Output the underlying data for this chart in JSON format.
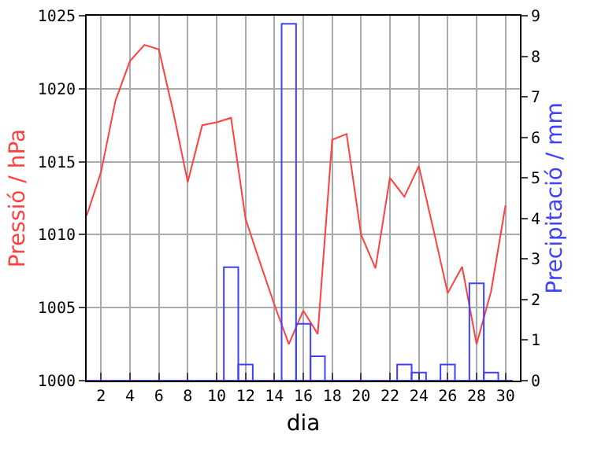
{
  "chart_data": {
    "type": "line",
    "xlabel": "dia",
    "ylabel": "Pressió / hPa",
    "y2label": "Precipitació / mm",
    "x": [
      1,
      2,
      3,
      4,
      5,
      6,
      7,
      8,
      9,
      10,
      11,
      12,
      13,
      14,
      15,
      16,
      17,
      18,
      19,
      20,
      21,
      22,
      23,
      24,
      25,
      26,
      27,
      28,
      29,
      30
    ],
    "series": [
      {
        "color": "#ff4040",
        "values": [
          1011.3,
          1014.3,
          1019.2,
          1021.9,
          1023.0,
          1022.7,
          1018.4,
          1013.6,
          1017.5,
          1017.7,
          1018.0,
          1011.1,
          1008.1,
          1005.2,
          1002.5,
          1004.8,
          1003.2,
          1016.5,
          1016.9,
          1010.0,
          1007.7,
          1013.9,
          1012.6,
          1014.7,
          1010.4,
          1006.0,
          1007.8,
          1002.5,
          1006.1,
          1012.0
        ]
      },
      {
        "type": "bar",
        "axis": "y2",
        "color": "#4040ff",
        "values": [
          0,
          0,
          0,
          0,
          0,
          0,
          0,
          0,
          0,
          0,
          2.8,
          0.4,
          0,
          0,
          8.8,
          1.4,
          0.6,
          0,
          0,
          0,
          0,
          0,
          0.4,
          0.2,
          0,
          0.4,
          0,
          2.4,
          0.2,
          0
        ]
      }
    ],
    "xlim": [
      1,
      31
    ],
    "xticks": [
      2,
      4,
      6,
      8,
      10,
      12,
      14,
      16,
      18,
      20,
      22,
      24,
      26,
      28,
      30
    ],
    "ylim": [
      1000,
      1025
    ],
    "yticks": [
      1000,
      1005,
      1010,
      1015,
      1020,
      1025
    ],
    "y2lim": [
      0,
      9
    ],
    "y2ticks": [
      0,
      1,
      2,
      3,
      4,
      5,
      6,
      7,
      8,
      9
    ],
    "grid": true,
    "marker": "none",
    "line_style": "solid"
  }
}
